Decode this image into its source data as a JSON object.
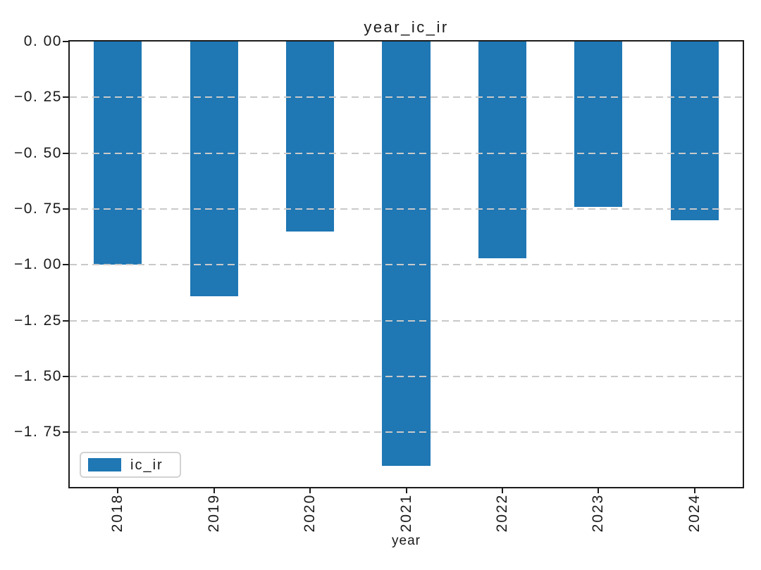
{
  "chart_data": {
    "type": "bar",
    "title": "year_ic_ir",
    "xlabel": "year",
    "ylabel": "",
    "categories": [
      "2018",
      "2019",
      "2020",
      "2021",
      "2022",
      "2023",
      "2024"
    ],
    "series": [
      {
        "name": "ic_ir",
        "values": [
          -1.0,
          -1.14,
          -0.85,
          -1.9,
          -0.97,
          -0.74,
          -0.8
        ]
      }
    ],
    "ylim": [
      -1.995,
      0
    ],
    "yticks": [
      0,
      -0.25,
      -0.5,
      -0.75,
      -1.0,
      -1.25,
      -1.5,
      -1.75
    ],
    "ytick_labels": [
      "0. 00",
      "−0. 25",
      "−0. 50",
      "−0. 75",
      "−1. 00",
      "−1. 25",
      "−1. 50",
      "−1. 75"
    ],
    "grid": "horizontal-dashed-above-bars",
    "bar_width_fraction": 0.5,
    "legend": {
      "position": "lower-left",
      "entries": [
        {
          "label": "ic_ir",
          "color": "#1f77b4"
        }
      ]
    }
  },
  "colors": {
    "bar": "#1f77b4",
    "grid": "#c9c9c9",
    "spine": "#1c1c1c",
    "background": "#ffffff",
    "legend_border": "#d2d2d2"
  }
}
